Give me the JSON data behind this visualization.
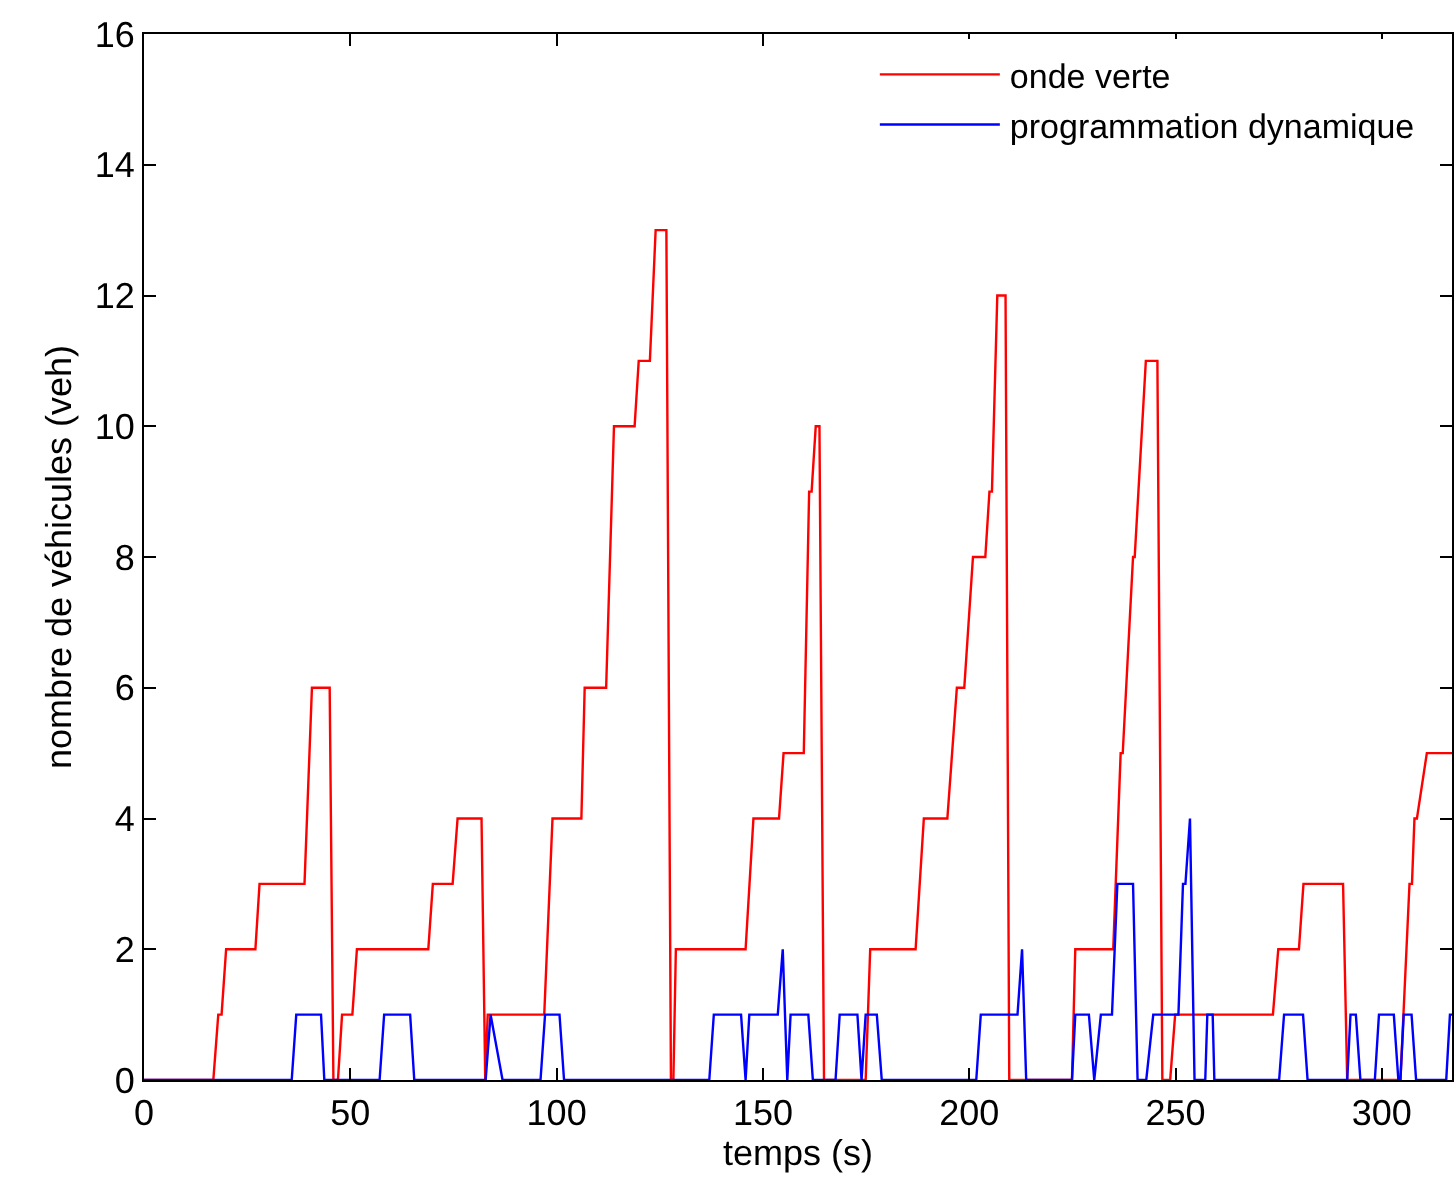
{
  "chart_data": {
    "type": "line",
    "xlabel": "temps (s)",
    "ylabel": "nombre de véhicules (veh)",
    "xlim": [
      0,
      317
    ],
    "ylim": [
      0,
      16
    ],
    "xticks": [
      0,
      50,
      100,
      150,
      200,
      250,
      300
    ],
    "yticks": [
      0,
      2,
      4,
      6,
      8,
      10,
      12,
      14,
      16
    ],
    "grid": false,
    "legend": "top right",
    "marker": "none",
    "line_style": "solid",
    "series": [
      {
        "name": "onde verte",
        "color": "#ff0000",
        "x": [
          0,
          16.8,
          18,
          18.8,
          19.9,
          27,
          28,
          38.9,
          40.7,
          45,
          45.9,
          47,
          48,
          50.5,
          51.6,
          68.9,
          70,
          74.8,
          76,
          81.8,
          82.7,
          83.3,
          97,
          99,
          106,
          106.8,
          112,
          113.9,
          118.9,
          119.9,
          122.6,
          124,
          126.6,
          127.7,
          128.3,
          128.9,
          145.8,
          147.7,
          153.9,
          155,
          159.9,
          161.2,
          161.8,
          162.8,
          163.7,
          164.8,
          174.9,
          176,
          187,
          189,
          194.7,
          197,
          198.8,
          200.9,
          203.9,
          204.9,
          205.5,
          206.8,
          208.8,
          209.7,
          224.9,
          225.7,
          234.9,
          236.7,
          237.2,
          239.7,
          240.1,
          242.8,
          245.6,
          246.8,
          248.7,
          249.9,
          273.6,
          274.9,
          279.9,
          281,
          290.6,
          291.6,
          304.5,
          306.7,
          307.3,
          307.9,
          308.5,
          310.9,
          317
        ],
        "values": [
          0,
          0,
          1,
          1,
          2,
          2,
          3,
          3,
          6,
          6,
          0,
          0,
          1,
          1,
          2,
          2,
          3,
          3,
          4,
          4,
          0,
          1,
          1,
          4,
          4,
          6,
          6,
          10,
          10,
          11,
          11,
          13,
          13,
          0,
          0,
          2,
          2,
          4,
          4,
          5,
          5,
          9,
          9,
          10,
          10,
          0,
          0,
          2,
          2,
          4,
          4,
          6,
          6,
          8,
          8,
          9,
          9,
          12,
          12,
          0,
          0,
          2,
          2,
          5,
          5,
          8,
          8,
          11,
          11,
          0,
          0,
          1,
          1,
          2,
          2,
          3,
          3,
          0,
          0,
          3,
          3,
          4,
          4,
          5,
          5
        ]
      },
      {
        "name": "programmation dynamique",
        "color": "#0000ff",
        "x": [
          0,
          35.8,
          36.9,
          42.9,
          43.7,
          57.1,
          58.2,
          64.5,
          65.5,
          82.8,
          84,
          86.9,
          96.1,
          97.2,
          100.7,
          101.8,
          137,
          138.1,
          144.7,
          145.8,
          146.7,
          153.6,
          154.8,
          155.9,
          156.7,
          161,
          162.1,
          167.6,
          168.6,
          172.9,
          173.9,
          174.9,
          177.6,
          178.8,
          201.7,
          202.8,
          211.7,
          212.8,
          213.8,
          224.9,
          225.7,
          229,
          230.3,
          231.9,
          234.6,
          235.9,
          239.7,
          240.8,
          242.9,
          244.6,
          250.7,
          251.8,
          252.4,
          253.5,
          254.6,
          257.2,
          257.7,
          259,
          259.4,
          275.1,
          276.3,
          280.9,
          282,
          291.6,
          292.4,
          293.7,
          294.8,
          298.3,
          299.3,
          302.9,
          304,
          304.5,
          305.3,
          307.2,
          308.3,
          315.6,
          316.5,
          317
        ],
        "values": [
          0,
          0,
          1,
          1,
          0,
          0,
          1,
          1,
          0,
          0,
          1,
          0,
          0,
          1,
          1,
          0,
          0,
          1,
          1,
          0,
          1,
          1,
          2,
          0,
          1,
          1,
          0,
          0,
          1,
          1,
          0,
          1,
          1,
          0,
          0,
          1,
          1,
          2,
          0,
          0,
          1,
          1,
          0,
          1,
          1,
          3,
          3,
          0,
          0,
          1,
          1,
          3,
          3,
          4,
          0,
          0,
          1,
          1,
          0,
          0,
          1,
          1,
          0,
          0,
          1,
          1,
          0,
          0,
          1,
          1,
          0,
          0,
          1,
          1,
          0,
          0,
          1,
          1
        ]
      }
    ]
  }
}
